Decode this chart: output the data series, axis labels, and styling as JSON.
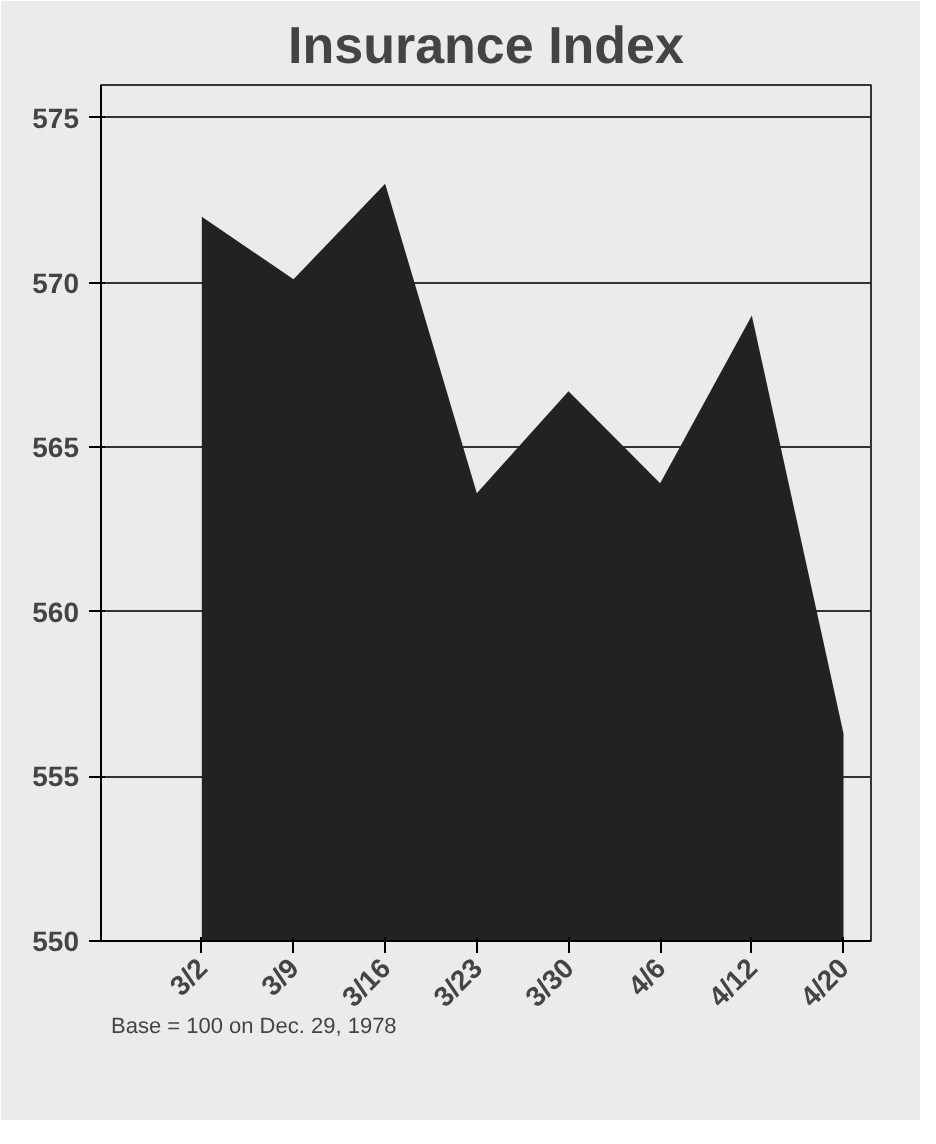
{
  "chart_data": {
    "type": "area",
    "title": "Insurance Index",
    "categories": [
      "3/2",
      "3/9",
      "3/16",
      "3/23",
      "3/30",
      "4/6",
      "4/12",
      "4/20"
    ],
    "series": [
      {
        "color": "#222222",
        "values": [
          572.0,
          570.1,
          573.0,
          563.6,
          566.7,
          563.9,
          569.0,
          556.3
        ]
      }
    ],
    "ylim": [
      550,
      576
    ],
    "yticks": [
      550,
      555,
      560,
      565,
      570,
      575
    ],
    "grid": "y",
    "annotations": [
      "Base = 100 on Dec. 29, 1978"
    ]
  }
}
